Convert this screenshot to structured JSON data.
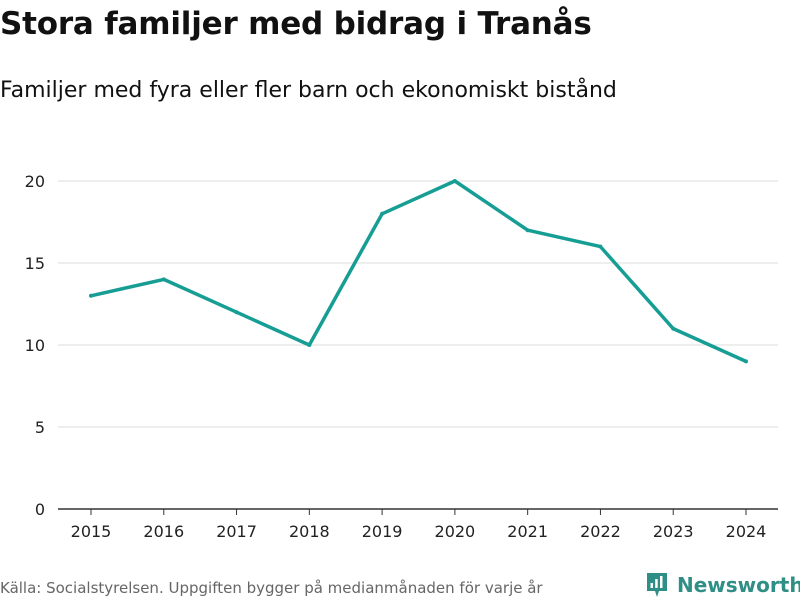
{
  "header": {
    "title": "Stora familjer med bidrag i Tranås",
    "subtitle": "Familjer med fyra eller fler barn och ekonomiskt bistånd"
  },
  "footer": {
    "source": "Källa: Socialstyrelsen. Uppgiften bygger på medianmånaden för varje år",
    "brand": "Newsworthy",
    "brand_icon": "newsworthy-logo-icon",
    "brand_color": "#2f8f86"
  },
  "chart_data": {
    "type": "line",
    "title": "Stora familjer med bidrag i Tranås",
    "subtitle": "Familjer med fyra eller fler barn och ekonomiskt bistånd",
    "xlabel": "",
    "ylabel": "",
    "x": [
      "2015",
      "2016",
      "2017",
      "2018",
      "2019",
      "2020",
      "2021",
      "2022",
      "2023",
      "2024"
    ],
    "series": [
      {
        "name": "Familjer med fyra eller fler barn och ekonomiskt bistånd",
        "values": [
          13,
          14,
          12,
          10,
          18,
          20,
          17,
          16,
          11,
          9
        ],
        "color": "#169e94"
      }
    ],
    "ylim": [
      0,
      20
    ],
    "yticks": [
      "0",
      "5",
      "10",
      "15",
      "20"
    ],
    "grid": true,
    "legend": "none"
  }
}
